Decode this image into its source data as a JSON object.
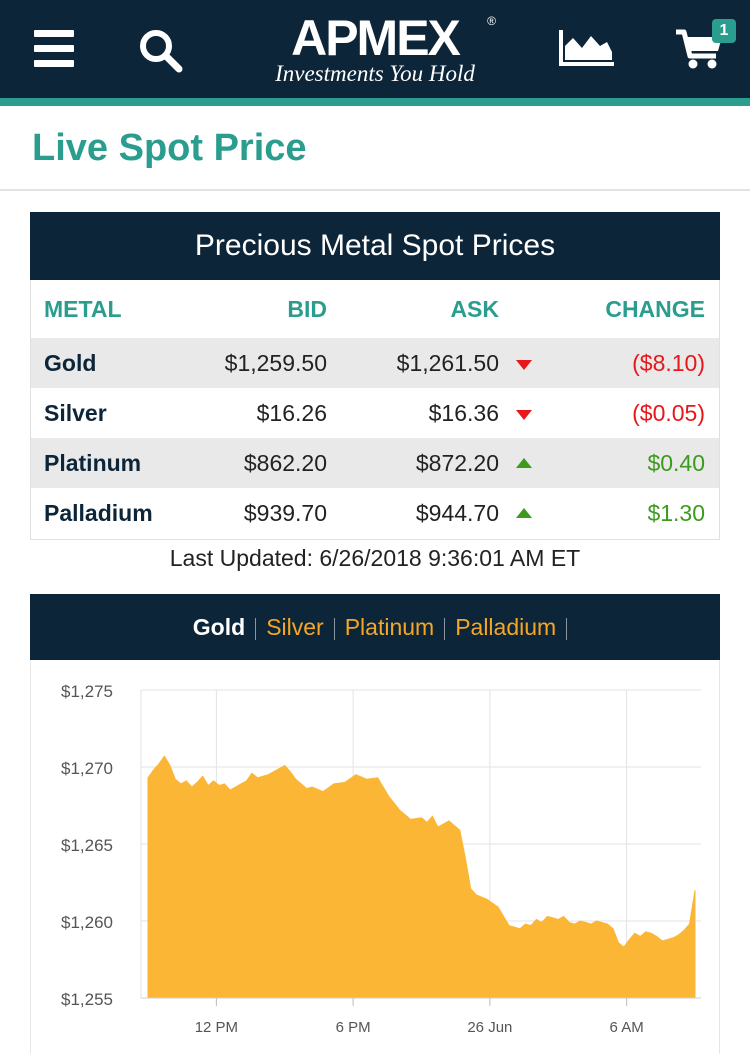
{
  "header": {
    "menu_icon": "hamburger-menu-icon",
    "search_icon": "search-icon",
    "logo_word": "APMEX",
    "logo_reg": "®",
    "logo_tagline": "Investments You Hold",
    "chart_icon": "area-chart-icon",
    "cart_icon": "shopping-cart-icon",
    "cart_count": "1"
  },
  "page": {
    "title": "Live Spot Price"
  },
  "spot_table": {
    "heading": "Precious Metal Spot Prices",
    "columns": {
      "metal": "METAL",
      "bid": "BID",
      "ask": "ASK",
      "change": "CHANGE"
    },
    "rows": [
      {
        "metal": "Gold",
        "bid": "$1,259.50",
        "ask": "$1,261.50",
        "direction": "down",
        "change": "($8.10)"
      },
      {
        "metal": "Silver",
        "bid": "$16.26",
        "ask": "$16.36",
        "direction": "down",
        "change": "($0.05)"
      },
      {
        "metal": "Platinum",
        "bid": "$862.20",
        "ask": "$872.20",
        "direction": "up",
        "change": "$0.40"
      },
      {
        "metal": "Palladium",
        "bid": "$939.70",
        "ask": "$944.70",
        "direction": "up",
        "change": "$1.30"
      }
    ],
    "last_updated": "Last Updated: 6/26/2018 9:36:01 AM ET"
  },
  "chart_tabs": {
    "items": [
      "Gold",
      "Silver",
      "Platinum",
      "Palladium"
    ],
    "active": "Gold"
  },
  "colors": {
    "navy": "#0d2538",
    "teal": "#2a9d8f",
    "orange": "#f5a623",
    "chart_fill": "#fbb635",
    "down": "#e8171b",
    "up": "#3c9b1d"
  },
  "chart_data": {
    "type": "area",
    "title": "",
    "xlabel": "",
    "ylabel": "",
    "ylim": [
      1255,
      1275
    ],
    "y_ticks": [
      1255,
      1260,
      1265,
      1270,
      1275
    ],
    "y_tick_labels": [
      "$1,255",
      "$1,260",
      "$1,265",
      "$1,270",
      "$1,275"
    ],
    "x_ticks": [
      0.125,
      0.375,
      0.625,
      0.875
    ],
    "x_tick_labels": [
      "12 PM",
      "6 PM",
      "26 Jun",
      "6 AM"
    ],
    "grid": true,
    "series": [
      {
        "x": [
          0,
          0.01,
          0.02,
          0.03,
          0.04,
          0.05,
          0.06,
          0.07,
          0.08,
          0.09,
          0.1,
          0.11,
          0.12,
          0.13,
          0.14,
          0.15,
          0.16,
          0.17,
          0.18,
          0.19,
          0.2,
          0.22,
          0.24,
          0.25,
          0.26,
          0.27,
          0.28,
          0.29,
          0.3,
          0.32,
          0.34,
          0.36,
          0.38,
          0.4,
          0.42,
          0.44,
          0.46,
          0.48,
          0.5,
          0.51,
          0.52,
          0.53,
          0.54,
          0.55,
          0.56,
          0.57,
          0.58,
          0.59,
          0.6,
          0.62,
          0.64,
          0.66,
          0.68,
          0.69,
          0.7,
          0.71,
          0.72,
          0.73,
          0.74,
          0.75,
          0.76,
          0.77,
          0.78,
          0.79,
          0.8,
          0.81,
          0.82,
          0.83,
          0.84,
          0.85,
          0.86,
          0.87,
          0.88,
          0.89,
          0.9,
          0.91,
          0.92,
          0.93,
          0.94,
          0.95,
          0.96,
          0.97,
          0.98,
          0.99,
          1.0
        ],
        "values": [
          1269.3,
          1269.8,
          1270.2,
          1270.7,
          1270.1,
          1269.2,
          1268.9,
          1269.1,
          1268.7,
          1269.0,
          1269.4,
          1268.8,
          1269.1,
          1268.8,
          1268.9,
          1268.5,
          1268.7,
          1268.9,
          1269.1,
          1269.6,
          1269.3,
          1269.5,
          1269.9,
          1270.1,
          1269.7,
          1269.2,
          1268.9,
          1268.6,
          1268.7,
          1268.4,
          1268.9,
          1269.0,
          1269.5,
          1269.2,
          1269.3,
          1268.1,
          1267.2,
          1266.6,
          1266.7,
          1266.4,
          1266.8,
          1266.1,
          1266.3,
          1266.5,
          1266.2,
          1265.9,
          1264.1,
          1262.1,
          1261.7,
          1261.4,
          1260.9,
          1259.7,
          1259.5,
          1259.8,
          1259.7,
          1260.1,
          1259.9,
          1260.3,
          1260.2,
          1260.1,
          1260.3,
          1259.9,
          1259.8,
          1260.0,
          1259.9,
          1259.8,
          1260.0,
          1259.9,
          1259.8,
          1259.5,
          1258.6,
          1258.3,
          1258.8,
          1259.2,
          1259.0,
          1259.3,
          1259.2,
          1259.0,
          1258.7,
          1258.8,
          1258.9,
          1259.1,
          1259.4,
          1259.8,
          1262.0
        ]
      }
    ]
  }
}
